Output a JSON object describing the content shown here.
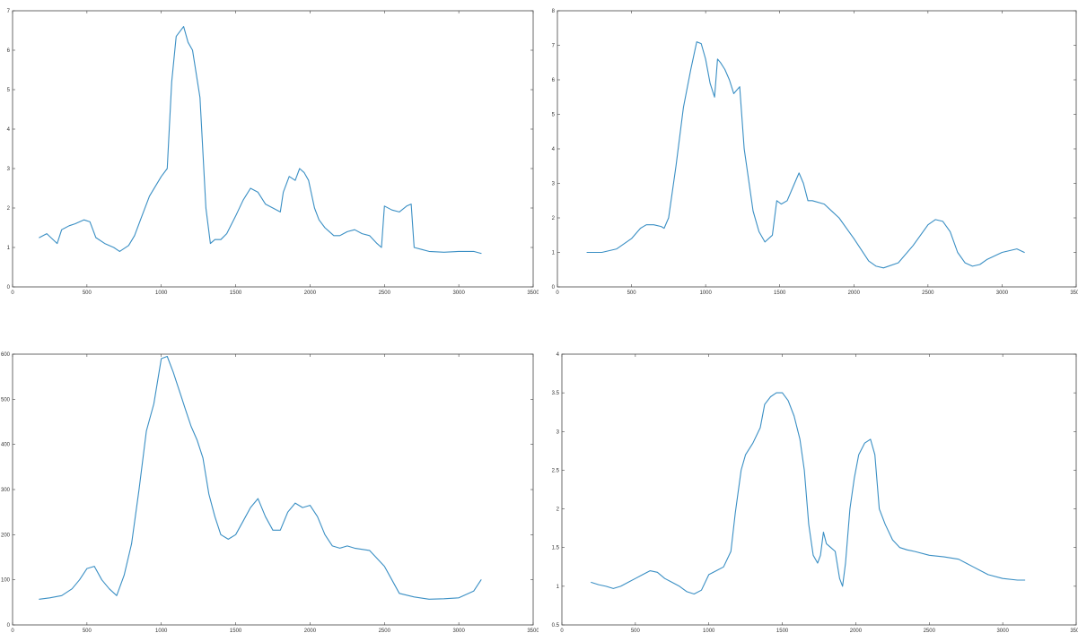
{
  "colors": {
    "line": "#3a8fc4",
    "axis": "#444444",
    "background": "#ffffff"
  },
  "chart_data": [
    {
      "type": "line",
      "xlim": [
        0,
        3500
      ],
      "ylim": [
        0,
        7
      ],
      "x_ticks": [
        0,
        500,
        1000,
        1500,
        2000,
        2500,
        3000,
        3500
      ],
      "x_tick_labels": [
        "0",
        "500",
        "1000",
        "1500",
        "2000",
        "2500",
        "3000",
        "3500"
      ],
      "y_ticks": [
        0,
        1,
        2,
        3,
        4,
        5,
        6,
        7
      ],
      "y_tick_labels": [
        "0",
        "1",
        "2",
        "3",
        "4",
        "5",
        "6",
        "7"
      ],
      "grid": false,
      "series": [
        {
          "x": [
            180,
            230,
            300,
            330,
            380,
            420,
            480,
            520,
            560,
            620,
            680,
            720,
            780,
            820,
            860,
            920,
            960,
            1000,
            1040,
            1070,
            1100,
            1150,
            1180,
            1210,
            1260,
            1300,
            1330,
            1360,
            1400,
            1440,
            1500,
            1550,
            1600,
            1650,
            1700,
            1750,
            1800,
            1820,
            1860,
            1900,
            1930,
            1960,
            1990,
            2030,
            2060,
            2100,
            2130,
            2160,
            2200,
            2250,
            2300,
            2350,
            2400,
            2450,
            2480,
            2500,
            2550,
            2600,
            2650,
            2680,
            2700,
            2750,
            2800,
            2900,
            3000,
            3100,
            3150
          ],
          "y": [
            1.25,
            1.35,
            1.1,
            1.45,
            1.55,
            1.6,
            1.7,
            1.65,
            1.25,
            1.1,
            1.0,
            0.9,
            1.05,
            1.3,
            1.7,
            2.3,
            2.55,
            2.8,
            3.0,
            5.2,
            6.35,
            6.6,
            6.2,
            6.0,
            4.8,
            2.0,
            1.1,
            1.2,
            1.2,
            1.35,
            1.8,
            2.2,
            2.5,
            2.4,
            2.1,
            2.0,
            1.9,
            2.4,
            2.8,
            2.7,
            3.0,
            2.9,
            2.7,
            2.0,
            1.7,
            1.5,
            1.4,
            1.3,
            1.3,
            1.4,
            1.45,
            1.35,
            1.3,
            1.1,
            1.0,
            2.05,
            1.95,
            1.9,
            2.05,
            2.1,
            1.0,
            0.95,
            0.9,
            0.88,
            0.9,
            0.9,
            0.85
          ]
        }
      ]
    },
    {
      "type": "line",
      "xlim": [
        0,
        3500
      ],
      "ylim": [
        0,
        8
      ],
      "x_ticks": [
        0,
        500,
        1000,
        1500,
        2000,
        2500,
        3000,
        3500
      ],
      "x_tick_labels": [
        "0",
        "500",
        "1000",
        "1500",
        "2000",
        "2500",
        "3000",
        "3500"
      ],
      "y_ticks": [
        0,
        1,
        2,
        3,
        4,
        5,
        6,
        7,
        8
      ],
      "y_tick_labels": [
        "0",
        "1",
        "2",
        "3",
        "4",
        "5",
        "6",
        "7",
        "8"
      ],
      "grid": false,
      "series": [
        {
          "x": [
            200,
            300,
            400,
            500,
            560,
            600,
            650,
            700,
            720,
            750,
            800,
            850,
            900,
            940,
            970,
            1000,
            1030,
            1060,
            1080,
            1100,
            1130,
            1160,
            1190,
            1230,
            1260,
            1280,
            1320,
            1360,
            1400,
            1450,
            1480,
            1510,
            1550,
            1600,
            1630,
            1660,
            1690,
            1720,
            1800,
            1850,
            1900,
            2000,
            2100,
            2150,
            2200,
            2300,
            2400,
            2500,
            2550,
            2600,
            2650,
            2700,
            2750,
            2800,
            2850,
            2900,
            3000,
            3100,
            3150
          ],
          "y": [
            1.0,
            1.0,
            1.1,
            1.4,
            1.7,
            1.8,
            1.8,
            1.75,
            1.7,
            2.0,
            3.5,
            5.2,
            6.3,
            7.1,
            7.05,
            6.6,
            5.9,
            5.5,
            6.6,
            6.5,
            6.3,
            6.0,
            5.6,
            5.8,
            4.0,
            3.4,
            2.2,
            1.6,
            1.3,
            1.5,
            2.5,
            2.4,
            2.5,
            3.0,
            3.3,
            3.0,
            2.5,
            2.5,
            2.4,
            2.2,
            2.0,
            1.4,
            0.75,
            0.6,
            0.55,
            0.7,
            1.2,
            1.8,
            1.95,
            1.9,
            1.6,
            1.0,
            0.7,
            0.6,
            0.65,
            0.8,
            1.0,
            1.1,
            1.0
          ]
        }
      ]
    },
    {
      "type": "line",
      "xlim": [
        0,
        3500
      ],
      "ylim": [
        0,
        600
      ],
      "x_ticks": [
        0,
        500,
        1000,
        1500,
        2000,
        2500,
        3000,
        3500
      ],
      "x_tick_labels": [
        "0",
        "500",
        "1000",
        "1500",
        "2000",
        "2500",
        "3000",
        "3500"
      ],
      "y_ticks": [
        0,
        100,
        200,
        300,
        400,
        500,
        600
      ],
      "y_tick_labels": [
        "0",
        "100",
        "200",
        "300",
        "400",
        "500",
        "600"
      ],
      "grid": false,
      "series": [
        {
          "x": [
            180,
            250,
            330,
            400,
            450,
            500,
            550,
            600,
            650,
            700,
            750,
            800,
            850,
            900,
            950,
            1000,
            1040,
            1080,
            1100,
            1130,
            1160,
            1200,
            1240,
            1280,
            1320,
            1360,
            1400,
            1450,
            1500,
            1550,
            1600,
            1650,
            1700,
            1750,
            1800,
            1850,
            1900,
            1950,
            2000,
            2050,
            2100,
            2150,
            2200,
            2250,
            2300,
            2400,
            2500,
            2550,
            2600,
            2700,
            2800,
            2900,
            3000,
            3100,
            3150
          ],
          "y": [
            57,
            60,
            65,
            80,
            100,
            125,
            130,
            100,
            80,
            65,
            110,
            180,
            300,
            430,
            490,
            590,
            595,
            560,
            540,
            510,
            480,
            440,
            410,
            370,
            290,
            240,
            200,
            190,
            200,
            230,
            260,
            280,
            240,
            210,
            210,
            250,
            270,
            260,
            265,
            240,
            200,
            175,
            170,
            175,
            170,
            165,
            130,
            100,
            70,
            62,
            57,
            58,
            60,
            75,
            100
          ]
        }
      ]
    },
    {
      "type": "line",
      "xlim": [
        0,
        3500
      ],
      "ylim": [
        0.5,
        4
      ],
      "x_ticks": [
        0,
        500,
        1000,
        1500,
        2000,
        2500,
        3000,
        3500
      ],
      "x_tick_labels": [
        "0",
        "500",
        "1000",
        "1500",
        "2000",
        "2500",
        "3000",
        "3500"
      ],
      "y_ticks": [
        0.5,
        1,
        1.5,
        2,
        2.5,
        3,
        3.5,
        4
      ],
      "y_tick_labels": [
        "0.5",
        "1",
        "1.5",
        "2",
        "2.5",
        "3",
        "3.5",
        "4"
      ],
      "grid": false,
      "series": [
        {
          "x": [
            200,
            250,
            300,
            350,
            400,
            450,
            500,
            550,
            600,
            650,
            700,
            750,
            800,
            850,
            900,
            950,
            1000,
            1050,
            1100,
            1150,
            1180,
            1220,
            1250,
            1300,
            1350,
            1380,
            1420,
            1460,
            1500,
            1540,
            1580,
            1620,
            1650,
            1680,
            1710,
            1740,
            1760,
            1780,
            1800,
            1830,
            1860,
            1890,
            1910,
            1930,
            1960,
            1990,
            2020,
            2060,
            2100,
            2130,
            2160,
            2200,
            2250,
            2300,
            2350,
            2400,
            2500,
            2600,
            2700,
            2750,
            2800,
            2900,
            3000,
            3100,
            3150
          ],
          "y": [
            1.05,
            1.02,
            1.0,
            0.97,
            1.0,
            1.05,
            1.1,
            1.15,
            1.2,
            1.18,
            1.1,
            1.05,
            1.0,
            0.93,
            0.9,
            0.95,
            1.15,
            1.2,
            1.25,
            1.45,
            1.95,
            2.5,
            2.7,
            2.85,
            3.05,
            3.35,
            3.45,
            3.5,
            3.5,
            3.4,
            3.2,
            2.9,
            2.5,
            1.8,
            1.4,
            1.3,
            1.4,
            1.7,
            1.55,
            1.5,
            1.45,
            1.1,
            1.0,
            1.3,
            2.0,
            2.4,
            2.7,
            2.85,
            2.9,
            2.7,
            2.0,
            1.8,
            1.6,
            1.5,
            1.47,
            1.45,
            1.4,
            1.38,
            1.35,
            1.3,
            1.25,
            1.15,
            1.1,
            1.08,
            1.08
          ]
        }
      ]
    }
  ]
}
